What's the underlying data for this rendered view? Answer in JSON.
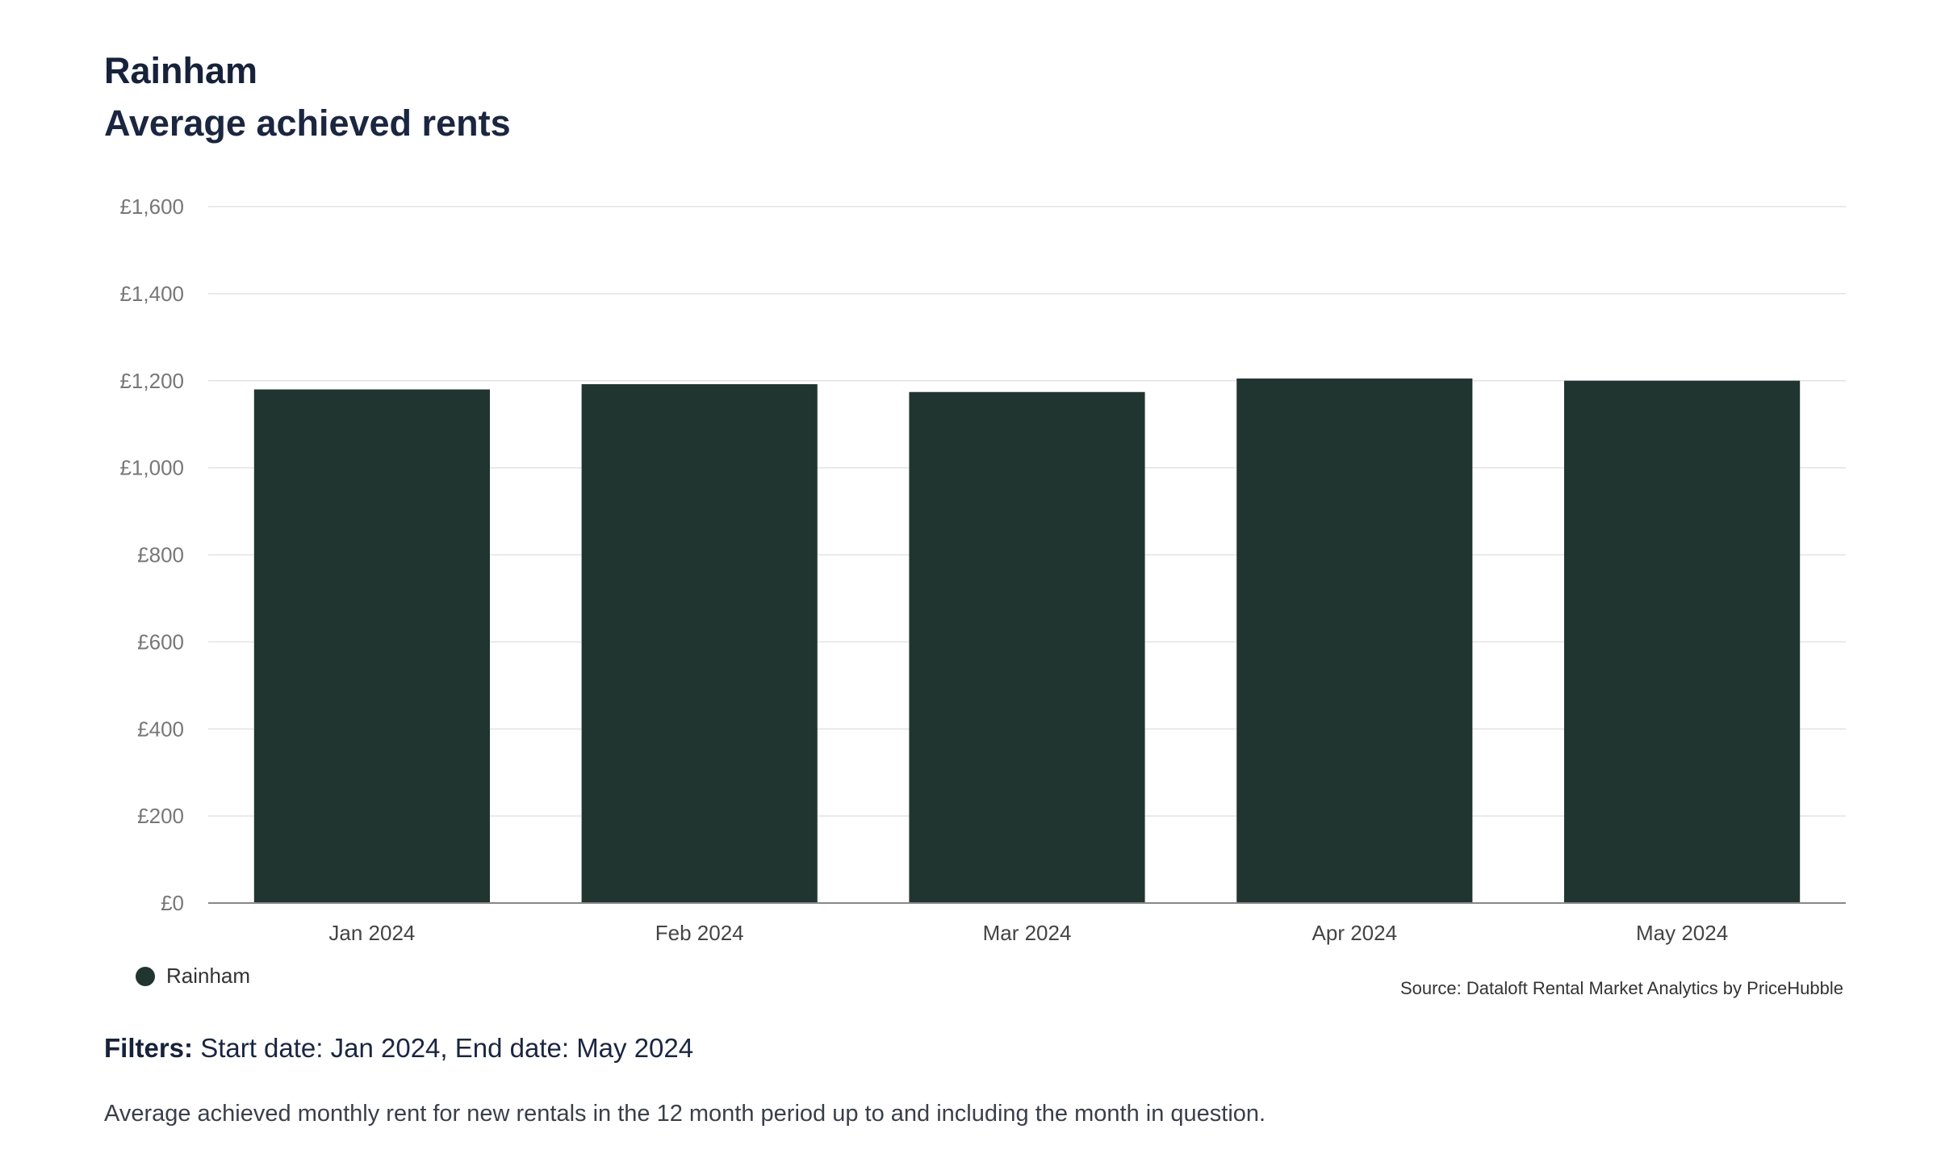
{
  "header": {
    "title": "Rainham",
    "subtitle": "Average achieved rents"
  },
  "legend": {
    "label": "Rainham"
  },
  "source": "Source: Dataloft Rental Market Analytics by PriceHubble",
  "filters": {
    "label": "Filters:",
    "text": " Start date: Jan 2024, End date: May 2024"
  },
  "note": "Average achieved monthly rent for new rentals in the 12 month period up to and including the month in question.",
  "colors": {
    "bar": "#213530",
    "grid": "#e3e3e3",
    "axis": "#888888",
    "tick_text": "#777777",
    "category_text": "#444444"
  },
  "chart_data": {
    "type": "bar",
    "categories": [
      "Jan 2024",
      "Feb 2024",
      "Mar 2024",
      "Apr 2024",
      "May 2024"
    ],
    "series": [
      {
        "name": "Rainham",
        "values": [
          1180,
          1192,
          1174,
          1205,
          1200
        ]
      }
    ],
    "ylim": [
      0,
      1600
    ],
    "yticks": [
      0,
      200,
      400,
      600,
      800,
      1000,
      1200,
      1400,
      1600
    ],
    "ytick_labels": [
      "£0",
      "£200",
      "£400",
      "£600",
      "£800",
      "£1,000",
      "£1,200",
      "£1,400",
      "£1,600"
    ],
    "grid": true,
    "legend_position": "bottom-left"
  }
}
